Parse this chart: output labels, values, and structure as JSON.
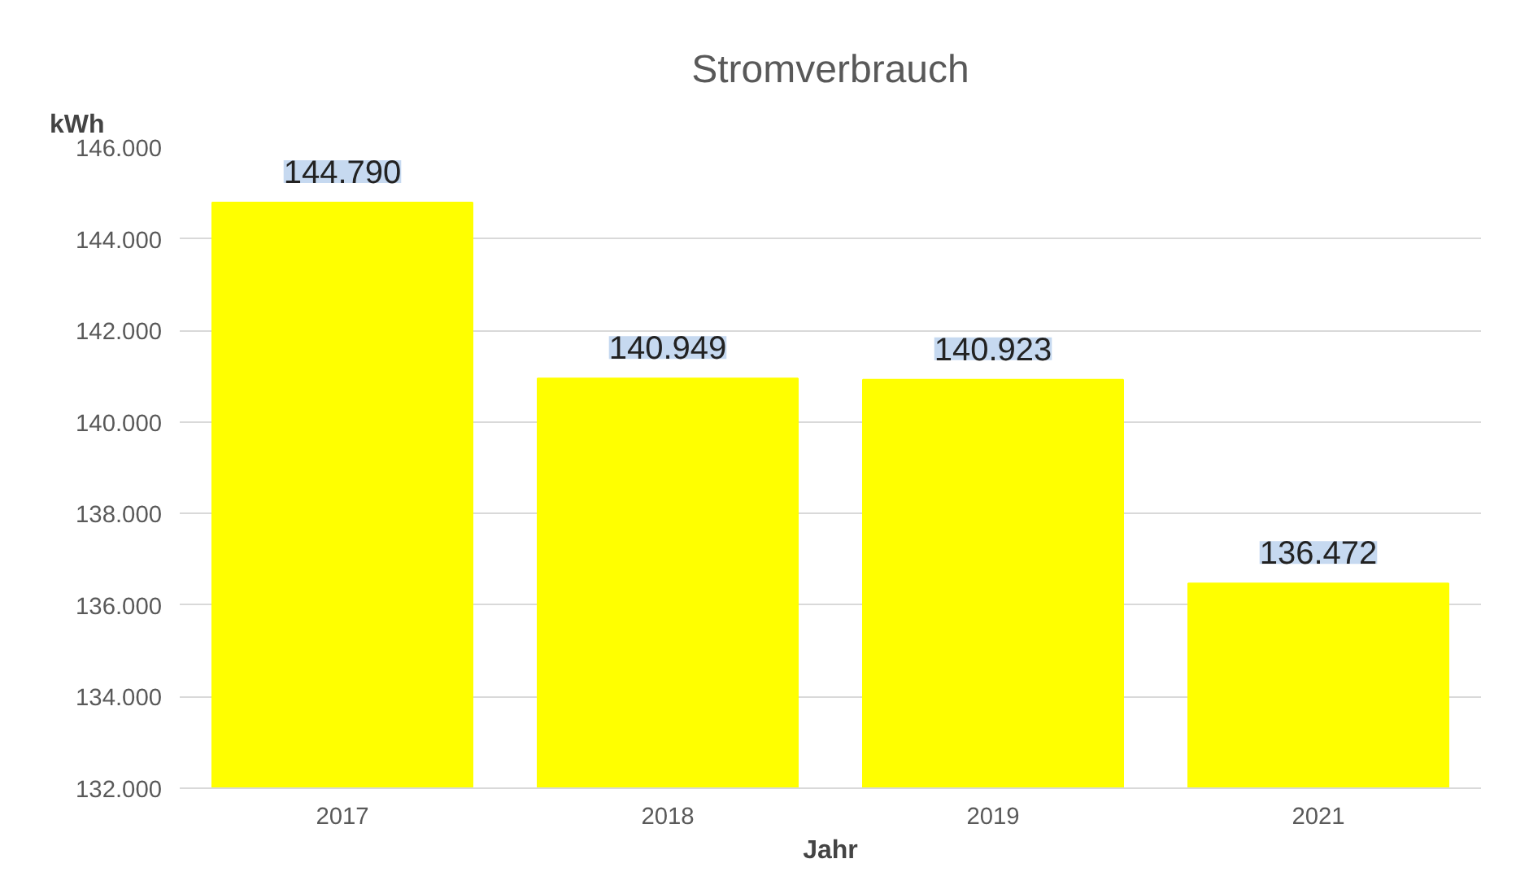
{
  "chart_data": {
    "type": "bar",
    "title": "Stromverbrauch",
    "ylabel": "kWh",
    "xlabel": "Jahr",
    "categories": [
      "2017",
      "2018",
      "2019",
      "2021"
    ],
    "values": [
      144790,
      140949,
      140923,
      136472
    ],
    "value_labels": [
      "144.790",
      "140.949",
      "140.923",
      "136.472"
    ],
    "color": "#ffff00",
    "ylim": [
      132000,
      146000
    ],
    "yticks": [
      {
        "value": 132000,
        "label": "132.000"
      },
      {
        "value": 134000,
        "label": "134.000"
      },
      {
        "value": 136000,
        "label": "136.000"
      },
      {
        "value": 138000,
        "label": "138.000"
      },
      {
        "value": 140000,
        "label": "140.000"
      },
      {
        "value": 142000,
        "label": "142.000"
      },
      {
        "value": 144000,
        "label": "144.000"
      },
      {
        "value": 146000,
        "label": "146.000"
      }
    ],
    "grid": "y"
  }
}
